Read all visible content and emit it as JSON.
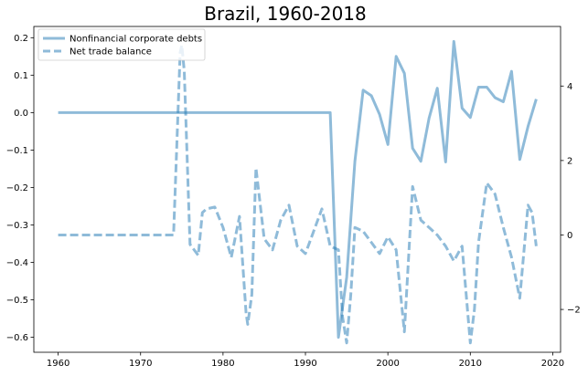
{
  "chart_data": {
    "type": "line",
    "title": "Brazil, 1960-2018",
    "xlabel": "",
    "xlim": [
      1957.05,
      2020.95
    ],
    "xticks": [
      1960,
      1970,
      1980,
      1990,
      2000,
      2010,
      2020
    ],
    "legend_position": "top-left",
    "grid": false,
    "series": [
      {
        "name": "Nonfinancial corporate debts",
        "axis": "left",
        "style": "solid",
        "color": "#1f77b4",
        "ylim": [
          -0.64,
          0.23
        ],
        "yticks": [
          -0.6,
          -0.5,
          -0.4,
          -0.3,
          -0.2,
          -0.1,
          0.0,
          0.1,
          0.2
        ],
        "ytick_labels": [
          "−0.6",
          "−0.5",
          "−0.4",
          "−0.3",
          "−0.2",
          "−0.1",
          "0.0",
          "0.1",
          "0.2"
        ],
        "x": [
          1960,
          1993,
          1994,
          1995,
          1996,
          1997,
          1998,
          1999,
          2000,
          2001,
          2002,
          2003,
          2004,
          2005,
          2006,
          2007,
          2008,
          2009,
          2010,
          2011,
          2012,
          2013,
          2014,
          2015,
          2016,
          2017,
          2018
        ],
        "y": [
          0.0,
          0.0,
          -0.6,
          -0.44,
          -0.13,
          0.06,
          0.045,
          -0.005,
          -0.085,
          0.15,
          0.105,
          -0.095,
          -0.13,
          -0.015,
          0.065,
          -0.132,
          0.19,
          0.012,
          -0.013,
          0.068,
          0.068,
          0.04,
          0.029,
          0.11,
          -0.125,
          -0.037,
          0.036
        ]
      },
      {
        "name": "Net trade balance",
        "axis": "right",
        "style": "dashed",
        "color": "#1f77b4",
        "ylim": [
          -3.15,
          5.6
        ],
        "yticks": [
          -2,
          0,
          2,
          4
        ],
        "ytick_labels": [
          "−2",
          "0",
          "2",
          "4"
        ],
        "x": [
          1960,
          1974,
          1974.8,
          1975,
          1975.3,
          1976,
          1977,
          1977.5,
          1978,
          1979,
          1980,
          1981,
          1982,
          1982.8,
          1983,
          1983.5,
          1984,
          1985,
          1986,
          1987,
          1988,
          1989,
          1990,
          1991,
          1992,
          1993,
          1994,
          1994.5,
          1995,
          1995.5,
          1996,
          1997,
          1998,
          1999,
          2000,
          2001,
          2002,
          2003,
          2004,
          2005,
          2006,
          2007,
          2008,
          2009,
          2010,
          2010.5,
          2011,
          2012,
          2013,
          2014,
          2015,
          2016,
          2017,
          2017.5,
          2018
        ],
        "y": [
          0.0,
          0.0,
          4.9,
          5.1,
          4.4,
          -0.25,
          -0.55,
          0.6,
          0.7,
          0.75,
          0.2,
          -0.6,
          0.5,
          -2.1,
          -2.4,
          -1.6,
          1.8,
          -0.1,
          -0.4,
          0.4,
          0.8,
          -0.3,
          -0.5,
          0.1,
          0.7,
          -0.3,
          -0.4,
          -2.2,
          -2.9,
          -1.6,
          0.2,
          0.1,
          -0.2,
          -0.5,
          -0.05,
          -0.4,
          -2.6,
          1.3,
          0.4,
          0.2,
          0.0,
          -0.3,
          -0.7,
          -0.3,
          -2.9,
          -2.0,
          -0.2,
          1.4,
          1.1,
          0.2,
          -0.6,
          -1.7,
          0.8,
          0.6,
          -0.3
        ]
      }
    ]
  }
}
